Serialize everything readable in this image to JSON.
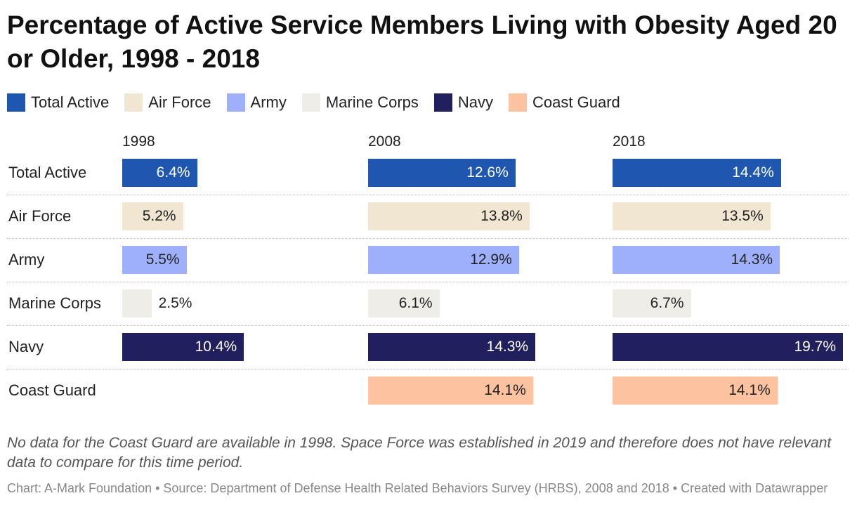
{
  "chart_data": {
    "type": "bar",
    "title": "Percentage of Active Service Members Living with Obesity Aged 20 or Older, 1998 - 2018",
    "categories": [
      "Total Active",
      "Air Force",
      "Army",
      "Marine Corps",
      "Navy",
      "Coast Guard"
    ],
    "colors": [
      "#1f57b0",
      "#f0e6d2",
      "#9eb0fc",
      "#eeede8",
      "#221f5e",
      "#fdc29f"
    ],
    "series": [
      {
        "name": "1998",
        "values": [
          6.4,
          5.2,
          5.5,
          2.5,
          10.4,
          null
        ],
        "value_labels": [
          "6.4%",
          "5.2%",
          "5.5%",
          "2.5%",
          "10.4%",
          null
        ]
      },
      {
        "name": "2008",
        "values": [
          12.6,
          13.8,
          12.9,
          6.1,
          14.3,
          14.1
        ],
        "value_labels": [
          "12.6%",
          "13.8%",
          "12.9%",
          "6.1%",
          "14.3%",
          "14.1%"
        ]
      },
      {
        "name": "2018",
        "values": [
          14.4,
          13.5,
          14.3,
          6.7,
          19.7,
          14.1
        ],
        "value_labels": [
          "14.4%",
          "13.5%",
          "14.3%",
          "6.7%",
          "19.7%",
          "14.1%"
        ]
      }
    ],
    "note": "No data for the Coast Guard are available in 1998. Space Force was established in 2019 and therefore does not have relevant data to compare for this time period.",
    "source": "Chart: A-Mark Foundation • Source: Department of Defense Health Related Behaviors Survey (HRBS), 2008 and 2018 • Created with Datawrapper"
  }
}
